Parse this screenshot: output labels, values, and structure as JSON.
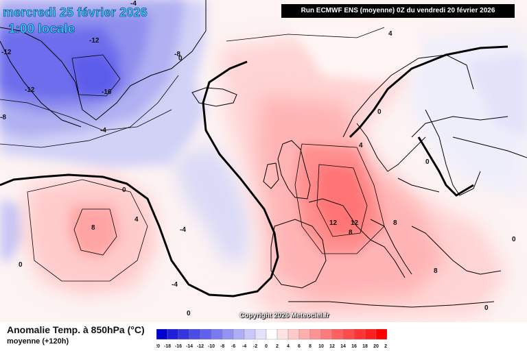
{
  "header": {
    "date_line": "mercredi 25 février 2026",
    "time_line": "1:00 locale",
    "run_info": "Run ECMWF ENS (moyenne) 0Z du vendredi 20 février 2026"
  },
  "footer": {
    "copyright": "Copyright 2026 Meteociel.fr",
    "legend_title": "Anomalie Temp. à 850hPa (°C)",
    "legend_subtitle": "moyenne    (+120h)"
  },
  "color_scale": {
    "ticks": [
      "-20",
      "-18",
      "-16",
      "-14",
      "-12",
      "-10",
      "-8",
      "-6",
      "-4",
      "-2",
      "0",
      "2",
      "4",
      "6",
      "8",
      "10",
      "12",
      "14",
      "16",
      "18",
      "20",
      "22"
    ],
    "colors": [
      "#0000cc",
      "#1f1fd9",
      "#3535e0",
      "#4b4be6",
      "#6161ec",
      "#7a7af0",
      "#9393f3",
      "#aeaef6",
      "#c9c9f9",
      "#e2e2fc",
      "#ffffff",
      "#ffe2e2",
      "#ffc9c9",
      "#ffaeae",
      "#ff9393",
      "#ff7a7a",
      "#ff6161",
      "#ff4b4b",
      "#ff3535",
      "#ff1f1f",
      "#ff0000"
    ]
  },
  "contour_labels": [
    {
      "text": "-12",
      "zone": "greenland-west"
    },
    {
      "text": "-12",
      "zone": "greenland-center"
    },
    {
      "text": "-12",
      "zone": "greenland-south"
    },
    {
      "text": "-16",
      "zone": "greenland-east"
    },
    {
      "text": "-8",
      "zone": "greenland-west-edge"
    },
    {
      "text": "-8",
      "zone": "greenland-north"
    },
    {
      "text": "-4",
      "zone": "greenland-southeast"
    },
    {
      "text": "-4",
      "zone": "greenland-coast"
    },
    {
      "text": "-4",
      "zone": "labrador-sea"
    },
    {
      "text": "-4",
      "zone": "atlantic-center"
    },
    {
      "text": "4",
      "zone": "north-sea-north"
    },
    {
      "text": "4",
      "zone": "atlantic-southwest"
    },
    {
      "text": "4",
      "zone": "scandinavia-west"
    },
    {
      "text": "0",
      "zone": "greenland-coast-east"
    },
    {
      "text": "0",
      "zone": "atlantic-north"
    },
    {
      "text": "0",
      "zone": "norway"
    },
    {
      "text": "0",
      "zone": "finland"
    },
    {
      "text": "0",
      "zone": "atlantic-west"
    },
    {
      "text": "0",
      "zone": "mid-atlantic"
    },
    {
      "text": "0",
      "zone": "balkans-east"
    },
    {
      "text": "0",
      "zone": "mediterranean-east"
    },
    {
      "text": "8",
      "zone": "atlantic-anomaly"
    },
    {
      "text": "8",
      "zone": "alps-south"
    },
    {
      "text": "8",
      "zone": "italy"
    },
    {
      "text": "8",
      "zone": "greece"
    },
    {
      "text": "12",
      "zone": "france-east"
    },
    {
      "text": "12",
      "zone": "alps"
    }
  ]
}
